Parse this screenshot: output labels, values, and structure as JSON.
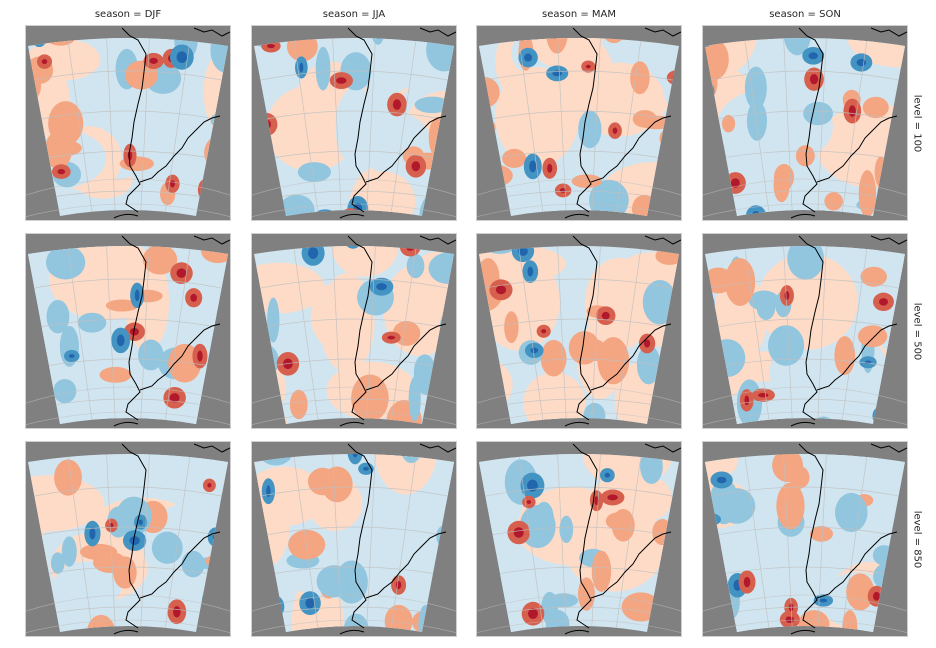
{
  "chart_data": {
    "type": "heatmap",
    "layout": "facet-grid",
    "columns": [
      {
        "label": "season = DJF"
      },
      {
        "label": "season = JJA"
      },
      {
        "label": "season = MAM"
      },
      {
        "label": "season = SON"
      }
    ],
    "rows": [
      {
        "label": "level = 100"
      },
      {
        "label": "level = 500"
      },
      {
        "label": "level = 850"
      }
    ],
    "colormap": [
      "#b2182b",
      "#d6604d",
      "#f4a582",
      "#fddbc7",
      "#d1e5f0",
      "#92c5de",
      "#4393c3",
      "#2166ac"
    ],
    "background_color": "#808080",
    "coastline_color": "#000000",
    "gridline_color": "#c0c0c0",
    "grid": true
  }
}
